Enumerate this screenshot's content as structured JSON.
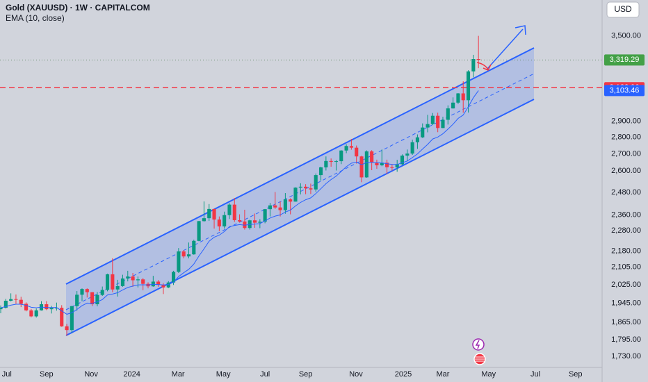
{
  "chart_data": {
    "type": "candlestick",
    "title": "Gold (XAUUSD) · 1W · CAPITALCOM",
    "currency": "USD",
    "log_scale": true,
    "grid": false,
    "up_color": "#089981",
    "down_color": "#f23645",
    "ylim": [
      1691,
      3787
    ],
    "yticks": [
      {
        "value": 1730,
        "label": "1,730.00"
      },
      {
        "value": 1795,
        "label": "1,795.00"
      },
      {
        "value": 1865,
        "label": "1,865.00"
      },
      {
        "value": 1945,
        "label": "1,945.00"
      },
      {
        "value": 2025,
        "label": "2,025.00"
      },
      {
        "value": 2105,
        "label": "2,105.00"
      },
      {
        "value": 2180,
        "label": "2,180.00"
      },
      {
        "value": 2280,
        "label": "2,280.00"
      },
      {
        "value": 2360,
        "label": "2,360.00"
      },
      {
        "value": 2480,
        "label": "2,480.00"
      },
      {
        "value": 2600,
        "label": "2,600.00"
      },
      {
        "value": 2700,
        "label": "2,700.00"
      },
      {
        "value": 2800,
        "label": "2,800.00"
      },
      {
        "value": 2900,
        "label": "2,900.00"
      },
      {
        "value": 3500,
        "label": "3,500.00"
      }
    ],
    "xlim": [
      -0.14,
      118.33
    ],
    "xticks": [
      {
        "value": 1.2,
        "label": "Jul"
      },
      {
        "value": 9.0,
        "label": "Sep"
      },
      {
        "value": 17.8,
        "label": "Nov"
      },
      {
        "value": 25.8,
        "label": "2024"
      },
      {
        "value": 34.9,
        "label": "Mar"
      },
      {
        "value": 43.8,
        "label": "May"
      },
      {
        "value": 52.0,
        "label": "Jul"
      },
      {
        "value": 60.0,
        "label": "Sep"
      },
      {
        "value": 69.9,
        "label": "Nov"
      },
      {
        "value": 79.2,
        "label": "2025"
      },
      {
        "value": 87.0,
        "label": "Mar"
      },
      {
        "value": 96.0,
        "label": "May"
      },
      {
        "value": 105.2,
        "label": "Jul"
      },
      {
        "value": 113.1,
        "label": "Sep"
      }
    ],
    "open": [
      1919,
      1925,
      1955,
      1962,
      1959,
      1942,
      1914,
      1889,
      1914,
      1940,
      1919,
      1924,
      1925,
      1848,
      1833,
      1932,
      1981,
      2006,
      1992,
      1940,
      1980,
      2002,
      2072,
      2004,
      2019,
      2053,
      2062,
      2045,
      2049,
      2029,
      2018,
      2039,
      2024,
      2013,
      2035,
      2083,
      2179,
      2155,
      2165,
      2230,
      2329,
      2344,
      2392,
      2337,
      2302,
      2360,
      2415,
      2334,
      2327,
      2294,
      2333,
      2321,
      2326,
      2391,
      2411,
      2400,
      2386,
      2443,
      2431,
      2507,
      2512,
      2503,
      2497,
      2577,
      2621,
      2658,
      2653,
      2657,
      2720,
      2747,
      2737,
      2685,
      2564,
      2715,
      2650,
      2633,
      2648,
      2622,
      2621,
      2639,
      2690,
      2702,
      2770,
      2800,
      2861,
      2883,
      2936,
      2858,
      2910,
      2984,
      3022,
      3084,
      3038,
      3237,
      3326
    ],
    "high": [
      1935,
      1963,
      1987,
      1982,
      1972,
      1948,
      1920,
      1922,
      1953,
      1953,
      1933,
      1947,
      1936,
      1858,
      1933,
      1997,
      2009,
      2009,
      1992,
      1993,
      2017,
      2075,
      2146,
      2047,
      2070,
      2088,
      2078,
      2062,
      2055,
      2036,
      2065,
      2046,
      2032,
      2041,
      2088,
      2195,
      2185,
      2222,
      2236,
      2330,
      2432,
      2418,
      2393,
      2353,
      2378,
      2422,
      2450,
      2364,
      2388,
      2336,
      2368,
      2339,
      2392,
      2424,
      2483,
      2432,
      2477,
      2449,
      2509,
      2531,
      2526,
      2529,
      2586,
      2625,
      2685,
      2673,
      2664,
      2722,
      2758,
      2790,
      2750,
      2689,
      2721,
      2722,
      2666,
      2726,
      2666,
      2640,
      2665,
      2697,
      2726,
      2786,
      2818,
      2887,
      2942,
      2954,
      2956,
      2930,
      3004,
      3057,
      3086,
      3167,
      3245,
      3357,
      3500
    ],
    "low": [
      1902,
      1922,
      1952,
      1942,
      1928,
      1910,
      1885,
      1884,
      1913,
      1915,
      1901,
      1913,
      1846,
      1810,
      1822,
      1913,
      1953,
      1969,
      1932,
      1931,
      1976,
      1996,
      1992,
      1973,
      2016,
      2040,
      2016,
      2013,
      2001,
      2009,
      2016,
      2016,
      1984,
      2010,
      2024,
      2078,
      2146,
      2146,
      2163,
      2228,
      2326,
      2330,
      2291,
      2278,
      2291,
      2340,
      2325,
      2322,
      2286,
      2286,
      2295,
      2293,
      2318,
      2353,
      2392,
      2353,
      2367,
      2364,
      2431,
      2470,
      2471,
      2472,
      2485,
      2546,
      2603,
      2625,
      2603,
      2640,
      2704,
      2725,
      2643,
      2537,
      2562,
      2605,
      2613,
      2628,
      2583,
      2603,
      2596,
      2634,
      2657,
      2694,
      2730,
      2796,
      2831,
      2877,
      2832,
      2857,
      2880,
      2982,
      3013,
      2956,
      2957,
      3195,
      3260
    ],
    "close": [
      1925,
      1955,
      1962,
      1959,
      1942,
      1914,
      1889,
      1914,
      1940,
      1919,
      1924,
      1925,
      1848,
      1833,
      1932,
      1981,
      2006,
      1992,
      1940,
      1980,
      2002,
      2072,
      2004,
      2019,
      2053,
      2062,
      2045,
      2049,
      2029,
      2018,
      2039,
      2024,
      2013,
      2035,
      2083,
      2179,
      2155,
      2165,
      2230,
      2329,
      2344,
      2392,
      2337,
      2302,
      2360,
      2415,
      2334,
      2327,
      2294,
      2333,
      2321,
      2326,
      2391,
      2411,
      2400,
      2386,
      2443,
      2431,
      2507,
      2512,
      2503,
      2497,
      2577,
      2621,
      2658,
      2653,
      2657,
      2720,
      2747,
      2737,
      2685,
      2564,
      2715,
      2650,
      2633,
      2648,
      2622,
      2621,
      2639,
      2690,
      2702,
      2770,
      2800,
      2861,
      2883,
      2936,
      2858,
      2910,
      2984,
      3022,
      3084,
      3038,
      3237,
      3326,
      3319.29
    ],
    "ema": {
      "name": "EMA (10, close)",
      "color": "#2962ff",
      "values": [
        1925,
        1930,
        1936,
        1940,
        1940,
        1935,
        1927,
        1925,
        1928,
        1926,
        1926,
        1926,
        1912,
        1898,
        1904,
        1918,
        1934,
        1945,
        1944,
        1950,
        1960,
        1980,
        1984,
        1990,
        2002,
        2013,
        2019,
        2024,
        2025,
        2024,
        2027,
        2026,
        2024,
        2026,
        2036,
        2062,
        2079,
        2095,
        2119,
        2157,
        2191,
        2228,
        2248,
        2258,
        2276,
        2301,
        2307,
        2311,
        2308,
        2312,
        2314,
        2316,
        2330,
        2345,
        2355,
        2361,
        2376,
        2386,
        2408,
        2427,
        2441,
        2451,
        2474,
        2501,
        2529,
        2552,
        2571,
        2598,
        2625,
        2645,
        2652,
        2636,
        2650,
        2650,
        2647,
        2647,
        2642,
        2638,
        2638,
        2648,
        2658,
        2678,
        2700,
        2729,
        2757,
        2790,
        2802,
        2822,
        2851,
        2882,
        2919,
        2941,
        2995,
        3055,
        3103.46
      ]
    },
    "price_labels": [
      {
        "value": 3319.29,
        "label": "3,319.29",
        "color": "#43a047",
        "line": "dotted"
      },
      {
        "value": 3122.96,
        "label": "3,122.96",
        "color": "#f23645",
        "line": "dashed"
      },
      {
        "value": 3103.46,
        "label": "3,103.46",
        "color": "#2962ff",
        "line": "none"
      }
    ]
  }
}
